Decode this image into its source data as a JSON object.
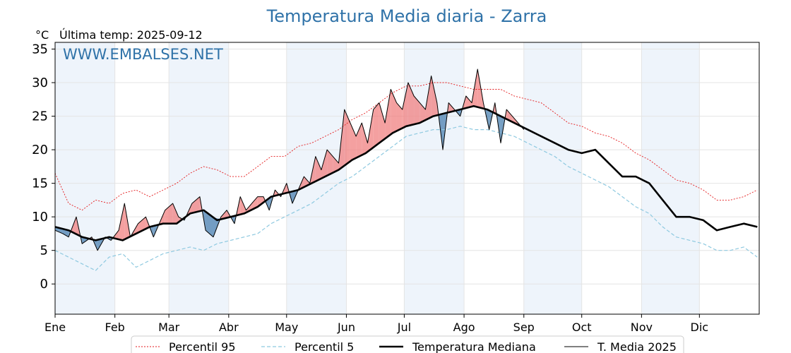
{
  "chart_data": {
    "type": "line",
    "title": "Temperatura Media diaria - Zarra",
    "unit": "°C",
    "last_temp_label": "Última temp: 2025-09-12",
    "watermark": "WWW.EMBALSES.NET",
    "ylim": [
      -4.5,
      36
    ],
    "yticks": [
      0,
      5,
      10,
      15,
      20,
      25,
      30,
      35
    ],
    "months": [
      "Ene",
      "Feb",
      "Mar",
      "Abr",
      "May",
      "Jun",
      "Jul",
      "Ago",
      "Sep",
      "Oct",
      "Nov",
      "Dic"
    ],
    "month_start_days": [
      1,
      32,
      60,
      91,
      121,
      152,
      182,
      213,
      244,
      274,
      305,
      335
    ],
    "days_in_year": 365,
    "grid": true,
    "legend_position": "bottom-center",
    "colors": {
      "p95": "#e41a1c",
      "p5": "#8ec9e0",
      "median": "#000000",
      "current": "#000000",
      "above": "#f08080",
      "below": "#4a80b0",
      "stripe": "#eef4fb"
    },
    "series": [
      {
        "name": "Percentil 95",
        "key": "p95",
        "style": "dotted-red",
        "points": [
          [
            1,
            16.5
          ],
          [
            8,
            12
          ],
          [
            15,
            11
          ],
          [
            22,
            12.5
          ],
          [
            29,
            12
          ],
          [
            36,
            13.5
          ],
          [
            43,
            14
          ],
          [
            50,
            13
          ],
          [
            57,
            14
          ],
          [
            64,
            15
          ],
          [
            71,
            16.5
          ],
          [
            78,
            17.5
          ],
          [
            85,
            17
          ],
          [
            92,
            16
          ],
          [
            99,
            16
          ],
          [
            106,
            17.5
          ],
          [
            113,
            19
          ],
          [
            120,
            19
          ],
          [
            127,
            20.5
          ],
          [
            134,
            21
          ],
          [
            141,
            22
          ],
          [
            148,
            23
          ],
          [
            155,
            24.5
          ],
          [
            162,
            25.5
          ],
          [
            169,
            27
          ],
          [
            176,
            28.5
          ],
          [
            183,
            29.5
          ],
          [
            190,
            29.5
          ],
          [
            197,
            30
          ],
          [
            204,
            30
          ],
          [
            211,
            29.5
          ],
          [
            218,
            29
          ],
          [
            225,
            29
          ],
          [
            232,
            29
          ],
          [
            239,
            28
          ],
          [
            246,
            27.5
          ],
          [
            253,
            27
          ],
          [
            260,
            25.5
          ],
          [
            267,
            24
          ],
          [
            274,
            23.5
          ],
          [
            281,
            22.5
          ],
          [
            288,
            22
          ],
          [
            295,
            21
          ],
          [
            302,
            19.5
          ],
          [
            309,
            18.5
          ],
          [
            316,
            17
          ],
          [
            323,
            15.5
          ],
          [
            330,
            15
          ],
          [
            337,
            14
          ],
          [
            344,
            12.5
          ],
          [
            351,
            12.5
          ],
          [
            358,
            13
          ],
          [
            365,
            14
          ]
        ]
      },
      {
        "name": "Percentil 5",
        "key": "p5",
        "style": "dashed-lightblue",
        "points": [
          [
            1,
            5
          ],
          [
            8,
            4
          ],
          [
            15,
            3
          ],
          [
            22,
            2
          ],
          [
            29,
            4
          ],
          [
            36,
            4.5
          ],
          [
            43,
            2.5
          ],
          [
            50,
            3.5
          ],
          [
            57,
            4.5
          ],
          [
            64,
            5
          ],
          [
            71,
            5.5
          ],
          [
            78,
            5
          ],
          [
            85,
            6
          ],
          [
            92,
            6.5
          ],
          [
            99,
            7
          ],
          [
            106,
            7.5
          ],
          [
            113,
            9
          ],
          [
            120,
            10
          ],
          [
            127,
            11
          ],
          [
            134,
            12
          ],
          [
            141,
            13.5
          ],
          [
            148,
            15
          ],
          [
            155,
            16
          ],
          [
            162,
            17.5
          ],
          [
            169,
            19
          ],
          [
            176,
            20.5
          ],
          [
            183,
            22
          ],
          [
            190,
            22.5
          ],
          [
            197,
            23
          ],
          [
            204,
            23
          ],
          [
            211,
            23.5
          ],
          [
            218,
            23
          ],
          [
            225,
            23
          ],
          [
            232,
            22.5
          ],
          [
            239,
            22
          ],
          [
            246,
            21
          ],
          [
            253,
            20
          ],
          [
            260,
            19
          ],
          [
            267,
            17.5
          ],
          [
            274,
            16.5
          ],
          [
            281,
            15.5
          ],
          [
            288,
            14.5
          ],
          [
            295,
            13
          ],
          [
            302,
            11.5
          ],
          [
            309,
            10.5
          ],
          [
            316,
            8.5
          ],
          [
            323,
            7
          ],
          [
            330,
            6.5
          ],
          [
            337,
            6
          ],
          [
            344,
            5
          ],
          [
            351,
            5
          ],
          [
            358,
            5.5
          ],
          [
            365,
            4
          ]
        ]
      },
      {
        "name": "Temperatura Mediana",
        "key": "median",
        "style": "thick-black",
        "points": [
          [
            1,
            8.5
          ],
          [
            8,
            8
          ],
          [
            15,
            7
          ],
          [
            22,
            6.5
          ],
          [
            29,
            7
          ],
          [
            36,
            6.5
          ],
          [
            43,
            7.5
          ],
          [
            50,
            8.5
          ],
          [
            57,
            9
          ],
          [
            64,
            9
          ],
          [
            71,
            10.5
          ],
          [
            78,
            11
          ],
          [
            85,
            9.5
          ],
          [
            92,
            10
          ],
          [
            99,
            10.5
          ],
          [
            106,
            11.5
          ],
          [
            113,
            13
          ],
          [
            120,
            13.5
          ],
          [
            127,
            14
          ],
          [
            134,
            15
          ],
          [
            141,
            16
          ],
          [
            148,
            17
          ],
          [
            155,
            18.5
          ],
          [
            162,
            19.5
          ],
          [
            169,
            21
          ],
          [
            176,
            22.5
          ],
          [
            183,
            23.5
          ],
          [
            190,
            24
          ],
          [
            197,
            25
          ],
          [
            204,
            25.5
          ],
          [
            211,
            26
          ],
          [
            218,
            26.5
          ],
          [
            225,
            26
          ],
          [
            232,
            25
          ],
          [
            239,
            24
          ],
          [
            246,
            23
          ],
          [
            253,
            22
          ],
          [
            260,
            21
          ],
          [
            267,
            20
          ],
          [
            274,
            19.5
          ],
          [
            281,
            20
          ],
          [
            288,
            18
          ],
          [
            295,
            16
          ],
          [
            302,
            16
          ],
          [
            309,
            15
          ],
          [
            316,
            12.5
          ],
          [
            323,
            10
          ],
          [
            330,
            10
          ],
          [
            337,
            9.5
          ],
          [
            344,
            8
          ],
          [
            351,
            8.5
          ],
          [
            358,
            9
          ],
          [
            365,
            8.5
          ]
        ]
      },
      {
        "name": "T. Media 2025",
        "key": "current",
        "style": "thin-black",
        "points": [
          [
            1,
            8
          ],
          [
            5,
            7.5
          ],
          [
            8,
            7
          ],
          [
            12,
            10
          ],
          [
            15,
            6
          ],
          [
            20,
            7
          ],
          [
            23,
            5
          ],
          [
            27,
            7
          ],
          [
            30,
            6.5
          ],
          [
            34,
            8
          ],
          [
            37,
            12
          ],
          [
            40,
            7
          ],
          [
            44,
            9
          ],
          [
            48,
            10
          ],
          [
            52,
            7
          ],
          [
            55,
            9
          ],
          [
            58,
            11
          ],
          [
            62,
            12
          ],
          [
            65,
            10
          ],
          [
            68,
            9.5
          ],
          [
            72,
            12
          ],
          [
            76,
            13
          ],
          [
            79,
            8
          ],
          [
            83,
            7
          ],
          [
            87,
            10
          ],
          [
            90,
            11
          ],
          [
            94,
            9
          ],
          [
            97,
            13
          ],
          [
            100,
            11
          ],
          [
            103,
            12
          ],
          [
            106,
            13
          ],
          [
            109,
            13
          ],
          [
            112,
            11
          ],
          [
            115,
            14
          ],
          [
            118,
            13
          ],
          [
            121,
            15
          ],
          [
            124,
            12
          ],
          [
            127,
            14
          ],
          [
            130,
            16
          ],
          [
            133,
            15
          ],
          [
            136,
            19
          ],
          [
            139,
            17
          ],
          [
            142,
            20
          ],
          [
            145,
            19
          ],
          [
            148,
            18
          ],
          [
            151,
            26
          ],
          [
            154,
            24
          ],
          [
            157,
            22
          ],
          [
            160,
            24
          ],
          [
            163,
            21
          ],
          [
            166,
            26
          ],
          [
            169,
            27
          ],
          [
            172,
            24
          ],
          [
            175,
            29
          ],
          [
            178,
            27
          ],
          [
            181,
            26
          ],
          [
            184,
            30
          ],
          [
            187,
            28
          ],
          [
            190,
            27
          ],
          [
            193,
            26
          ],
          [
            196,
            31
          ],
          [
            199,
            27
          ],
          [
            202,
            20
          ],
          [
            205,
            27
          ],
          [
            208,
            26
          ],
          [
            211,
            25
          ],
          [
            214,
            28
          ],
          [
            217,
            27
          ],
          [
            220,
            32
          ],
          [
            223,
            27
          ],
          [
            226,
            23
          ],
          [
            229,
            27
          ],
          [
            232,
            21
          ],
          [
            235,
            26
          ],
          [
            238,
            25
          ],
          [
            241,
            24
          ],
          [
            244,
            23
          ]
        ]
      }
    ],
    "legend": {
      "p95": "Percentil 95",
      "p5": "Percentil 5",
      "median": "Temperatura Mediana",
      "current": "T. Media 2025"
    }
  }
}
